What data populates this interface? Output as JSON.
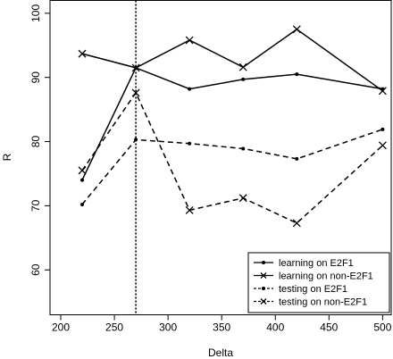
{
  "chart_data": {
    "type": "line",
    "xlabel": "Delta",
    "ylabel": "R",
    "xlim": [
      190,
      508
    ],
    "ylim": [
      53,
      102
    ],
    "xticks": [
      200,
      250,
      300,
      350,
      400,
      450,
      500
    ],
    "yticks": [
      60,
      70,
      80,
      90,
      100
    ],
    "vline": 270,
    "legend_position": "bottom-right",
    "series": [
      {
        "name": "learning on E2F1",
        "marker": "point",
        "line": "solid",
        "x": [
          220,
          270,
          320,
          370,
          420,
          500
        ],
        "values": [
          74.0,
          91.5,
          88.2,
          89.7,
          90.5,
          88.2
        ]
      },
      {
        "name": "learning on non-E2F1",
        "marker": "x",
        "line": "solid",
        "x": [
          220,
          270,
          320,
          370,
          420,
          500
        ],
        "values": [
          93.7,
          91.5,
          95.8,
          91.6,
          97.5,
          87.9
        ]
      },
      {
        "name": "testing on E2F1",
        "marker": "point",
        "line": "dashed",
        "x": [
          220,
          270,
          320,
          370,
          420,
          500
        ],
        "values": [
          70.2,
          80.3,
          79.7,
          78.9,
          77.3,
          81.9
        ]
      },
      {
        "name": "testing on non-E2F1",
        "marker": "x",
        "line": "dashed",
        "x": [
          220,
          270,
          320,
          370,
          420,
          500
        ],
        "values": [
          75.5,
          87.6,
          69.3,
          71.2,
          67.3,
          79.4
        ]
      }
    ]
  }
}
